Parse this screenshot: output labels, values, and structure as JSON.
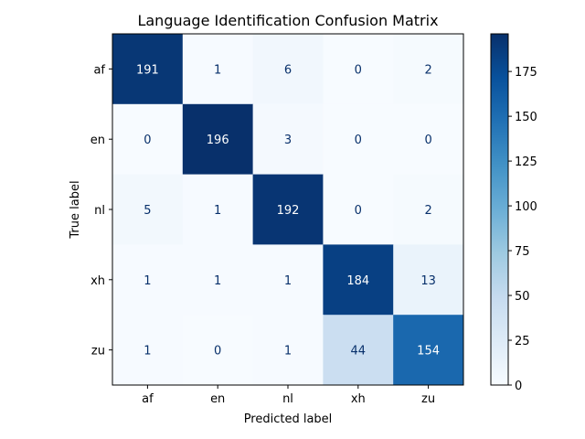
{
  "chart_data": {
    "type": "heatmap",
    "title": "Language Identification Confusion Matrix",
    "xlabel": "Predicted label",
    "ylabel": "True label",
    "x_categories": [
      "af",
      "en",
      "nl",
      "xh",
      "zu"
    ],
    "y_categories": [
      "af",
      "en",
      "nl",
      "xh",
      "zu"
    ],
    "values": [
      [
        191,
        1,
        6,
        0,
        2
      ],
      [
        0,
        196,
        3,
        0,
        0
      ],
      [
        5,
        1,
        192,
        0,
        2
      ],
      [
        1,
        1,
        1,
        184,
        13
      ],
      [
        1,
        0,
        1,
        44,
        154
      ]
    ],
    "colormap": "Blues",
    "color_range": [
      0,
      196
    ],
    "colorbar_ticks": [
      "0",
      "25",
      "50",
      "75",
      "100",
      "125",
      "150",
      "175"
    ],
    "colorbar_tick_values": [
      0,
      25,
      50,
      75,
      100,
      125,
      150,
      175
    ],
    "grid": false
  }
}
